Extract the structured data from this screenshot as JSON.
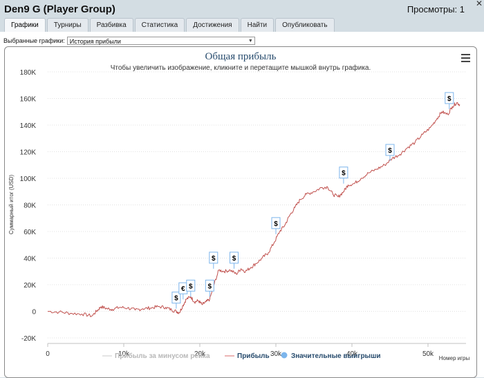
{
  "app": {
    "title": "Den9 G (Player Group)",
    "views": "Просмотры: 1"
  },
  "tabs": [
    "Графики",
    "Турниры",
    "Разбивка",
    "Статистика",
    "Достижения",
    "Найти",
    "Опубликовать"
  ],
  "selector": {
    "label": "Выбранные графики:",
    "value": "История прибыли"
  },
  "chart_data": {
    "type": "line",
    "title": "Общая прибыль",
    "subtitle": "Чтобы увеличить изображение, кликните и перетащите мышкой внутрь графика.",
    "ylabel": "Суммарный итог (USD)",
    "xlabel": "Номер игры",
    "xlim": [
      0,
      55000
    ],
    "ylim": [
      -20000,
      180000
    ],
    "x_ticks": [
      {
        "v": 0,
        "label": "0"
      },
      {
        "v": 10000,
        "label": "10k"
      },
      {
        "v": 20000,
        "label": "20k"
      },
      {
        "v": 30000,
        "label": "30k"
      },
      {
        "v": 40000,
        "label": "40k"
      },
      {
        "v": 50000,
        "label": "50k"
      }
    ],
    "y_ticks": [
      {
        "v": -20000,
        "label": "-20K"
      },
      {
        "v": 0,
        "label": "0"
      },
      {
        "v": 20000,
        "label": "20K"
      },
      {
        "v": 40000,
        "label": "40K"
      },
      {
        "v": 60000,
        "label": "60K"
      },
      {
        "v": 80000,
        "label": "80K"
      },
      {
        "v": 100000,
        "label": "100K"
      },
      {
        "v": 120000,
        "label": "120K"
      },
      {
        "v": 140000,
        "label": "140K"
      },
      {
        "v": 160000,
        "label": "160K"
      },
      {
        "v": 180000,
        "label": "180K"
      }
    ],
    "grid": true,
    "legend": {
      "placement": "bottom",
      "items": [
        {
          "name": "Прибыль за минусом рейка",
          "color": "#c8c8c8",
          "active": false
        },
        {
          "name": "Прибыль",
          "color": "#d96a6a",
          "active": true
        },
        {
          "name": "Значительные выигрыши",
          "color": "#7cb5ec",
          "active": true
        }
      ]
    },
    "series": [
      {
        "name": "Прибыль",
        "color": "#c0504d",
        "x": [
          0,
          1500,
          3000,
          4500,
          5800,
          6500,
          7000,
          7800,
          8500,
          9500,
          10500,
          11500,
          12500,
          13500,
          14500,
          15500,
          16300,
          16900,
          17300,
          17800,
          18200,
          18800,
          19300,
          19800,
          20300,
          20800,
          21300,
          21800,
          22500,
          23200,
          24000,
          24800,
          25400,
          26000,
          26700,
          27400,
          28200,
          29000,
          29800,
          30500,
          31200,
          31800,
          32500,
          33200,
          34000,
          35000,
          36000,
          36800,
          37500,
          38200,
          38900,
          39500,
          40300,
          41200,
          42200,
          43300,
          44300,
          45300,
          46300,
          47300,
          48300,
          49300,
          50300,
          51200,
          51800,
          52600,
          53200,
          53800,
          54200
        ],
        "y": [
          0,
          -500,
          -1500,
          -2000,
          -3500,
          500,
          3500,
          2000,
          1500,
          3000,
          2500,
          1000,
          2000,
          2500,
          3500,
          3000,
          1000,
          0,
          -1000,
          4500,
          9000,
          11000,
          7000,
          8000,
          5000,
          7000,
          9000,
          19000,
          31000,
          30000,
          31000,
          28000,
          32000,
          30000,
          33000,
          36000,
          40000,
          44000,
          52000,
          60000,
          65000,
          72000,
          78000,
          84000,
          88000,
          90000,
          93000,
          93500,
          88000,
          86000,
          90000,
          95000,
          96000,
          100000,
          104000,
          107000,
          110000,
          115000,
          118000,
          123000,
          127000,
          133000,
          138000,
          145000,
          150000,
          148000,
          154000,
          157000,
          155000
        ]
      }
    ],
    "markers": [
      {
        "x": 16900,
        "y": 2000,
        "symbol": "$"
      },
      {
        "x": 17800,
        "y": 9000,
        "symbol": "€"
      },
      {
        "x": 18800,
        "y": 11000,
        "symbol": "$"
      },
      {
        "x": 21300,
        "y": 11000,
        "symbol": "$"
      },
      {
        "x": 21800,
        "y": 32000,
        "symbol": "$"
      },
      {
        "x": 24500,
        "y": 32000,
        "symbol": "$"
      },
      {
        "x": 30000,
        "y": 58000,
        "symbol": "$"
      },
      {
        "x": 38900,
        "y": 96000,
        "symbol": "$"
      },
      {
        "x": 45000,
        "y": 113000,
        "symbol": "$"
      },
      {
        "x": 52800,
        "y": 152000,
        "symbol": "$"
      }
    ]
  }
}
